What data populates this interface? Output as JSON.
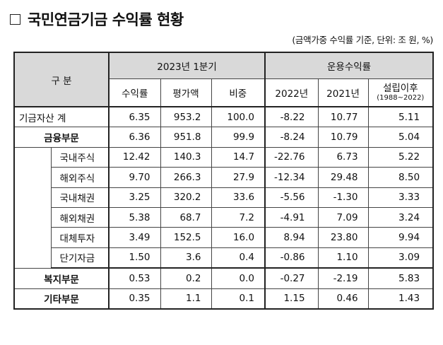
{
  "title": "국민연금기금 수익률 현황",
  "unit_note": "(금액가중 수익률 기준, 단위: 조 원, %)",
  "headers": {
    "category": "구 분",
    "group_2023": "2023년 1분기",
    "group_returns": "운용수익률",
    "return_rate": "수익률",
    "valuation": "평가액",
    "weight": "비중",
    "y2022": "2022년",
    "y2021": "2021년",
    "since_inception": "설립이후",
    "since_inception_range": "(1988~2022)"
  },
  "rows": [
    {
      "label": "기금자산 계",
      "values": [
        "6.35",
        "953.2",
        "100.0",
        "-8.22",
        "10.77",
        "5.11"
      ]
    },
    {
      "label": "금융부문",
      "values": [
        "6.36",
        "951.8",
        "99.9",
        "-8.24",
        "10.79",
        "5.04"
      ]
    },
    {
      "label": "국내주식",
      "values": [
        "12.42",
        "140.3",
        "14.7",
        "-22.76",
        "6.73",
        "5.22"
      ]
    },
    {
      "label": "해외주식",
      "values": [
        "9.70",
        "266.3",
        "27.9",
        "-12.34",
        "29.48",
        "8.50"
      ]
    },
    {
      "label": "국내채권",
      "values": [
        "3.25",
        "320.2",
        "33.6",
        "-5.56",
        "-1.30",
        "3.33"
      ]
    },
    {
      "label": "해외채권",
      "values": [
        "5.38",
        "68.7",
        "7.2",
        "-4.91",
        "7.09",
        "3.24"
      ]
    },
    {
      "label": "대체투자",
      "values": [
        "3.49",
        "152.5",
        "16.0",
        "8.94",
        "23.80",
        "9.94"
      ]
    },
    {
      "label": "단기자금",
      "values": [
        "1.50",
        "3.6",
        "0.4",
        "-0.86",
        "1.10",
        "3.09"
      ]
    },
    {
      "label": "복지부문",
      "values": [
        "0.53",
        "0.2",
        "0.0",
        "-0.27",
        "-2.19",
        "5.83"
      ]
    },
    {
      "label": "기타부문",
      "values": [
        "0.35",
        "1.1",
        "0.1",
        "1.15",
        "0.46",
        "1.43"
      ]
    }
  ]
}
